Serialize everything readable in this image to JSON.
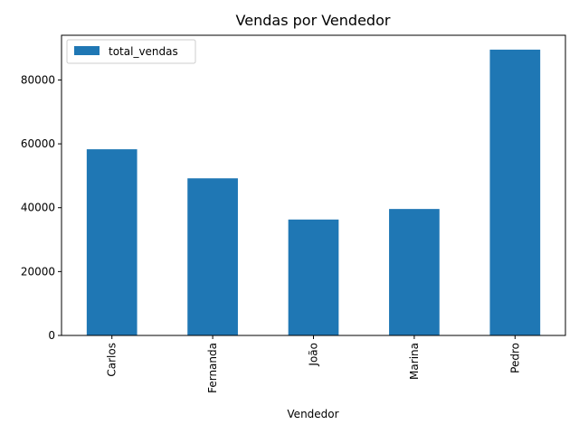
{
  "chart_data": {
    "type": "bar",
    "title": "Vendas por Vendedor",
    "xlabel": "Vendedor",
    "ylabel": "",
    "categories": [
      "Carlos",
      "Fernanda",
      "João",
      "Marina",
      "Pedro"
    ],
    "series": [
      {
        "name": "total_vendas",
        "values": [
          58300,
          49200,
          36300,
          39600,
          89500
        ],
        "color": "#1f77b4"
      }
    ],
    "ylim": [
      0,
      94000
    ],
    "yticks": [
      0,
      20000,
      40000,
      60000,
      80000
    ],
    "grid": false,
    "legend": "top-left",
    "x_tick_rotation": "vertical"
  }
}
